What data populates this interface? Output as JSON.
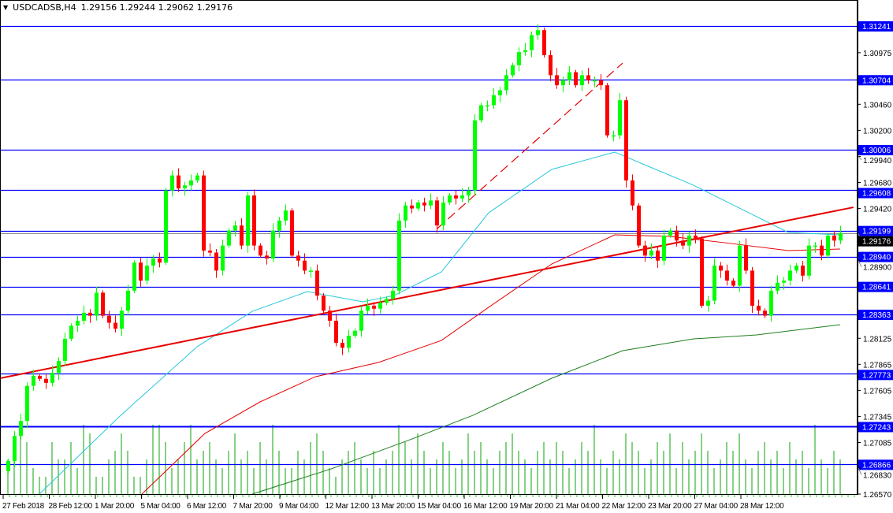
{
  "header": {
    "menu_icon": "triangle-down-icon",
    "symbol": "USDCADSB,H4",
    "ohlc_text": "1.29156 1.29244 1.29062 1.29176"
  },
  "colors": {
    "bull": "#00ff00",
    "bear": "#ff0000",
    "level": "#0000ff",
    "ma_fast": "#28c8dc",
    "ma_mid": "#e60000",
    "ma_slow": "#1e7f1e",
    "trend": "#e60000",
    "volume": "#32b432",
    "price_line": "#8c8c8c"
  },
  "chart_data": {
    "type": "candlestick",
    "title": "USDCADSB,H4",
    "ylim": [
      1.2657,
      1.31241
    ],
    "y_ticks": [
      "1.30975",
      "1.30460",
      "1.30200",
      "1.29940",
      "1.29680",
      "1.29420",
      "1.28900",
      "1.28125",
      "1.27865",
      "1.27605",
      "1.27345",
      "1.27085",
      "1.26830",
      "1.26570"
    ],
    "x_labels": [
      "27 Feb 2018",
      "28 Feb 12:00",
      "1 Mar 20:00",
      "5 Mar 04:00",
      "6 Mar 12:00",
      "7 Mar 20:00",
      "9 Mar 04:00",
      "12 Mar 12:00",
      "13 Mar 20:00",
      "15 Mar 04:00",
      "16 Mar 12:00",
      "19 Mar 20:00",
      "21 Mar 04:00",
      "22 Mar 12:00",
      "23 Mar 20:00",
      "27 Mar 04:00",
      "28 Mar 12:00"
    ],
    "wick": 0.0006,
    "closes": [
      1.269,
      1.2715,
      1.273,
      1.2765,
      1.2775,
      1.2772,
      1.2768,
      1.2778,
      1.279,
      1.2812,
      1.2825,
      1.283,
      1.2838,
      1.2835,
      1.2858,
      1.2835,
      1.2828,
      1.2822,
      1.284,
      1.286,
      1.2888,
      1.287,
      1.2885,
      1.2892,
      1.2888,
      1.296,
      1.2975,
      1.2962,
      1.2965,
      1.297,
      1.2975,
      1.29,
      1.2898,
      1.288,
      1.2905,
      1.292,
      1.2925,
      1.2905,
      1.2955,
      1.2905,
      1.2895,
      1.2892,
      1.292,
      1.293,
      1.294,
      1.2895,
      1.289,
      1.288,
      1.288,
      1.2855,
      1.284,
      1.283,
      1.2808,
      1.2803,
      1.2815,
      1.282,
      1.284,
      1.2845,
      1.2842,
      1.2848,
      1.2852,
      1.286,
      1.293,
      1.2945,
      1.2942,
      1.2948,
      1.2945,
      1.295,
      1.2925,
      1.2948,
      1.2955,
      1.2952,
      1.2955,
      1.296,
      1.303,
      1.3045,
      1.3045,
      1.3055,
      1.306,
      1.3075,
      1.3085,
      1.3098,
      1.31,
      1.3115,
      1.312,
      1.3095,
      1.3075,
      1.3065,
      1.307,
      1.3078,
      1.3065,
      1.3075,
      1.307,
      1.307,
      1.3065,
      1.3015,
      1.3015,
      1.305,
      1.297,
      1.2945,
      1.2905,
      1.2895,
      1.29,
      1.289,
      1.2915,
      1.292,
      1.291,
      1.2905,
      1.2915,
      1.2912,
      1.2845,
      1.285,
      1.2885,
      1.288,
      1.287,
      1.2865,
      1.2905,
      1.288,
      1.2845,
      1.284,
      1.2835,
      1.286,
      1.2868,
      1.287,
      1.288,
      1.2885,
      1.2875,
      1.2905,
      1.2905,
      1.2895,
      1.2915,
      1.291,
      1.29176
    ],
    "open_first": 1.268,
    "volumes": [
      4,
      5,
      8,
      6,
      3,
      2,
      2,
      6,
      4,
      4,
      6,
      3,
      8,
      7,
      2,
      2,
      4,
      5,
      7,
      5,
      2,
      2,
      4,
      8,
      8,
      6,
      3,
      4,
      6,
      8,
      4,
      5,
      6,
      4,
      3,
      5,
      7,
      4,
      5,
      3,
      6,
      4,
      8,
      5,
      3,
      3,
      5,
      4,
      6,
      7,
      5,
      3,
      2,
      4,
      5,
      6,
      4,
      3,
      5,
      3,
      4,
      5,
      8,
      6,
      4,
      7,
      5,
      3,
      4,
      6,
      5,
      3,
      4,
      7,
      5,
      6,
      4,
      3,
      5,
      6,
      7,
      5,
      4,
      3,
      5,
      6,
      4,
      6,
      5,
      3,
      4,
      6,
      5,
      8,
      4,
      3,
      5,
      4,
      7,
      6,
      5,
      3,
      4,
      6,
      5,
      7,
      3,
      6,
      4,
      5,
      7,
      5,
      3,
      4,
      6,
      5,
      7,
      4,
      3,
      5,
      6,
      4,
      5,
      3,
      6,
      4,
      5,
      3,
      8,
      4,
      3,
      5,
      4
    ],
    "levels": [
      1.31241,
      1.30704,
      1.30006,
      1.29608,
      1.29199,
      1.2894,
      1.28641,
      1.28363,
      1.27773,
      1.27243,
      1.26866
    ],
    "level_labels": [
      "1.31241",
      "1.30704",
      "1.30006",
      "1.29608",
      "1.29199",
      "1.28940",
      "1.28641",
      "1.28363",
      "1.27773",
      "1.27243",
      "1.26866"
    ],
    "current_price": 1.29176,
    "current_price_label": "1.29176",
    "moving_averages": [
      {
        "name": "ma-fast",
        "color": "ma_fast",
        "points": [
          [
            5,
            1.2657
          ],
          [
            17.5,
            1.27333
          ],
          [
            30,
            1.2804
          ],
          [
            38.75,
            1.28394
          ],
          [
            47.5,
            1.28591
          ],
          [
            56.25,
            1.28489
          ],
          [
            61.25,
            1.28551
          ],
          [
            68.75,
            1.28787
          ],
          [
            76.25,
            1.29377
          ],
          [
            86.25,
            1.2981
          ],
          [
            96.25,
            1.29983
          ],
          [
            101.25,
            1.29849
          ],
          [
            108.75,
            1.29652
          ],
          [
            116.25,
            1.29417
          ],
          [
            123.75,
            1.29181
          ],
          [
            132,
            1.29157
          ]
        ]
      },
      {
        "name": "ma-mid",
        "color": "ma_mid",
        "points": [
          [
            21.25,
            1.2657
          ],
          [
            31.25,
            1.27175
          ],
          [
            40,
            1.2749
          ],
          [
            48.75,
            1.27741
          ],
          [
            58.75,
            1.27883
          ],
          [
            68.75,
            1.28103
          ],
          [
            76.25,
            1.28434
          ],
          [
            86.25,
            1.28866
          ],
          [
            96.25,
            1.29157
          ],
          [
            105,
            1.29141
          ],
          [
            113.75,
            1.29078
          ],
          [
            123.75,
            1.29
          ],
          [
            132,
            1.29016
          ]
        ]
      },
      {
        "name": "ma-slow",
        "color": "ma_slow",
        "points": [
          [
            38.75,
            1.2657
          ],
          [
            51.25,
            1.26821
          ],
          [
            63.75,
            1.27112
          ],
          [
            73.75,
            1.27356
          ],
          [
            86.25,
            1.27726
          ],
          [
            97.5,
            1.28001
          ],
          [
            108.75,
            1.28119
          ],
          [
            118.75,
            1.28158
          ],
          [
            132,
            1.28261
          ]
        ]
      }
    ],
    "trendlines": [
      {
        "name": "support-trendline",
        "style": "solid",
        "from": [
          -1.25,
          1.27726
        ],
        "to": [
          134.1,
          1.29432
        ]
      },
      {
        "name": "rising-channel-trendline",
        "style": "dashed",
        "from": [
          68.1,
          1.2922
        ],
        "to": [
          97.5,
          1.30871
        ]
      }
    ]
  }
}
